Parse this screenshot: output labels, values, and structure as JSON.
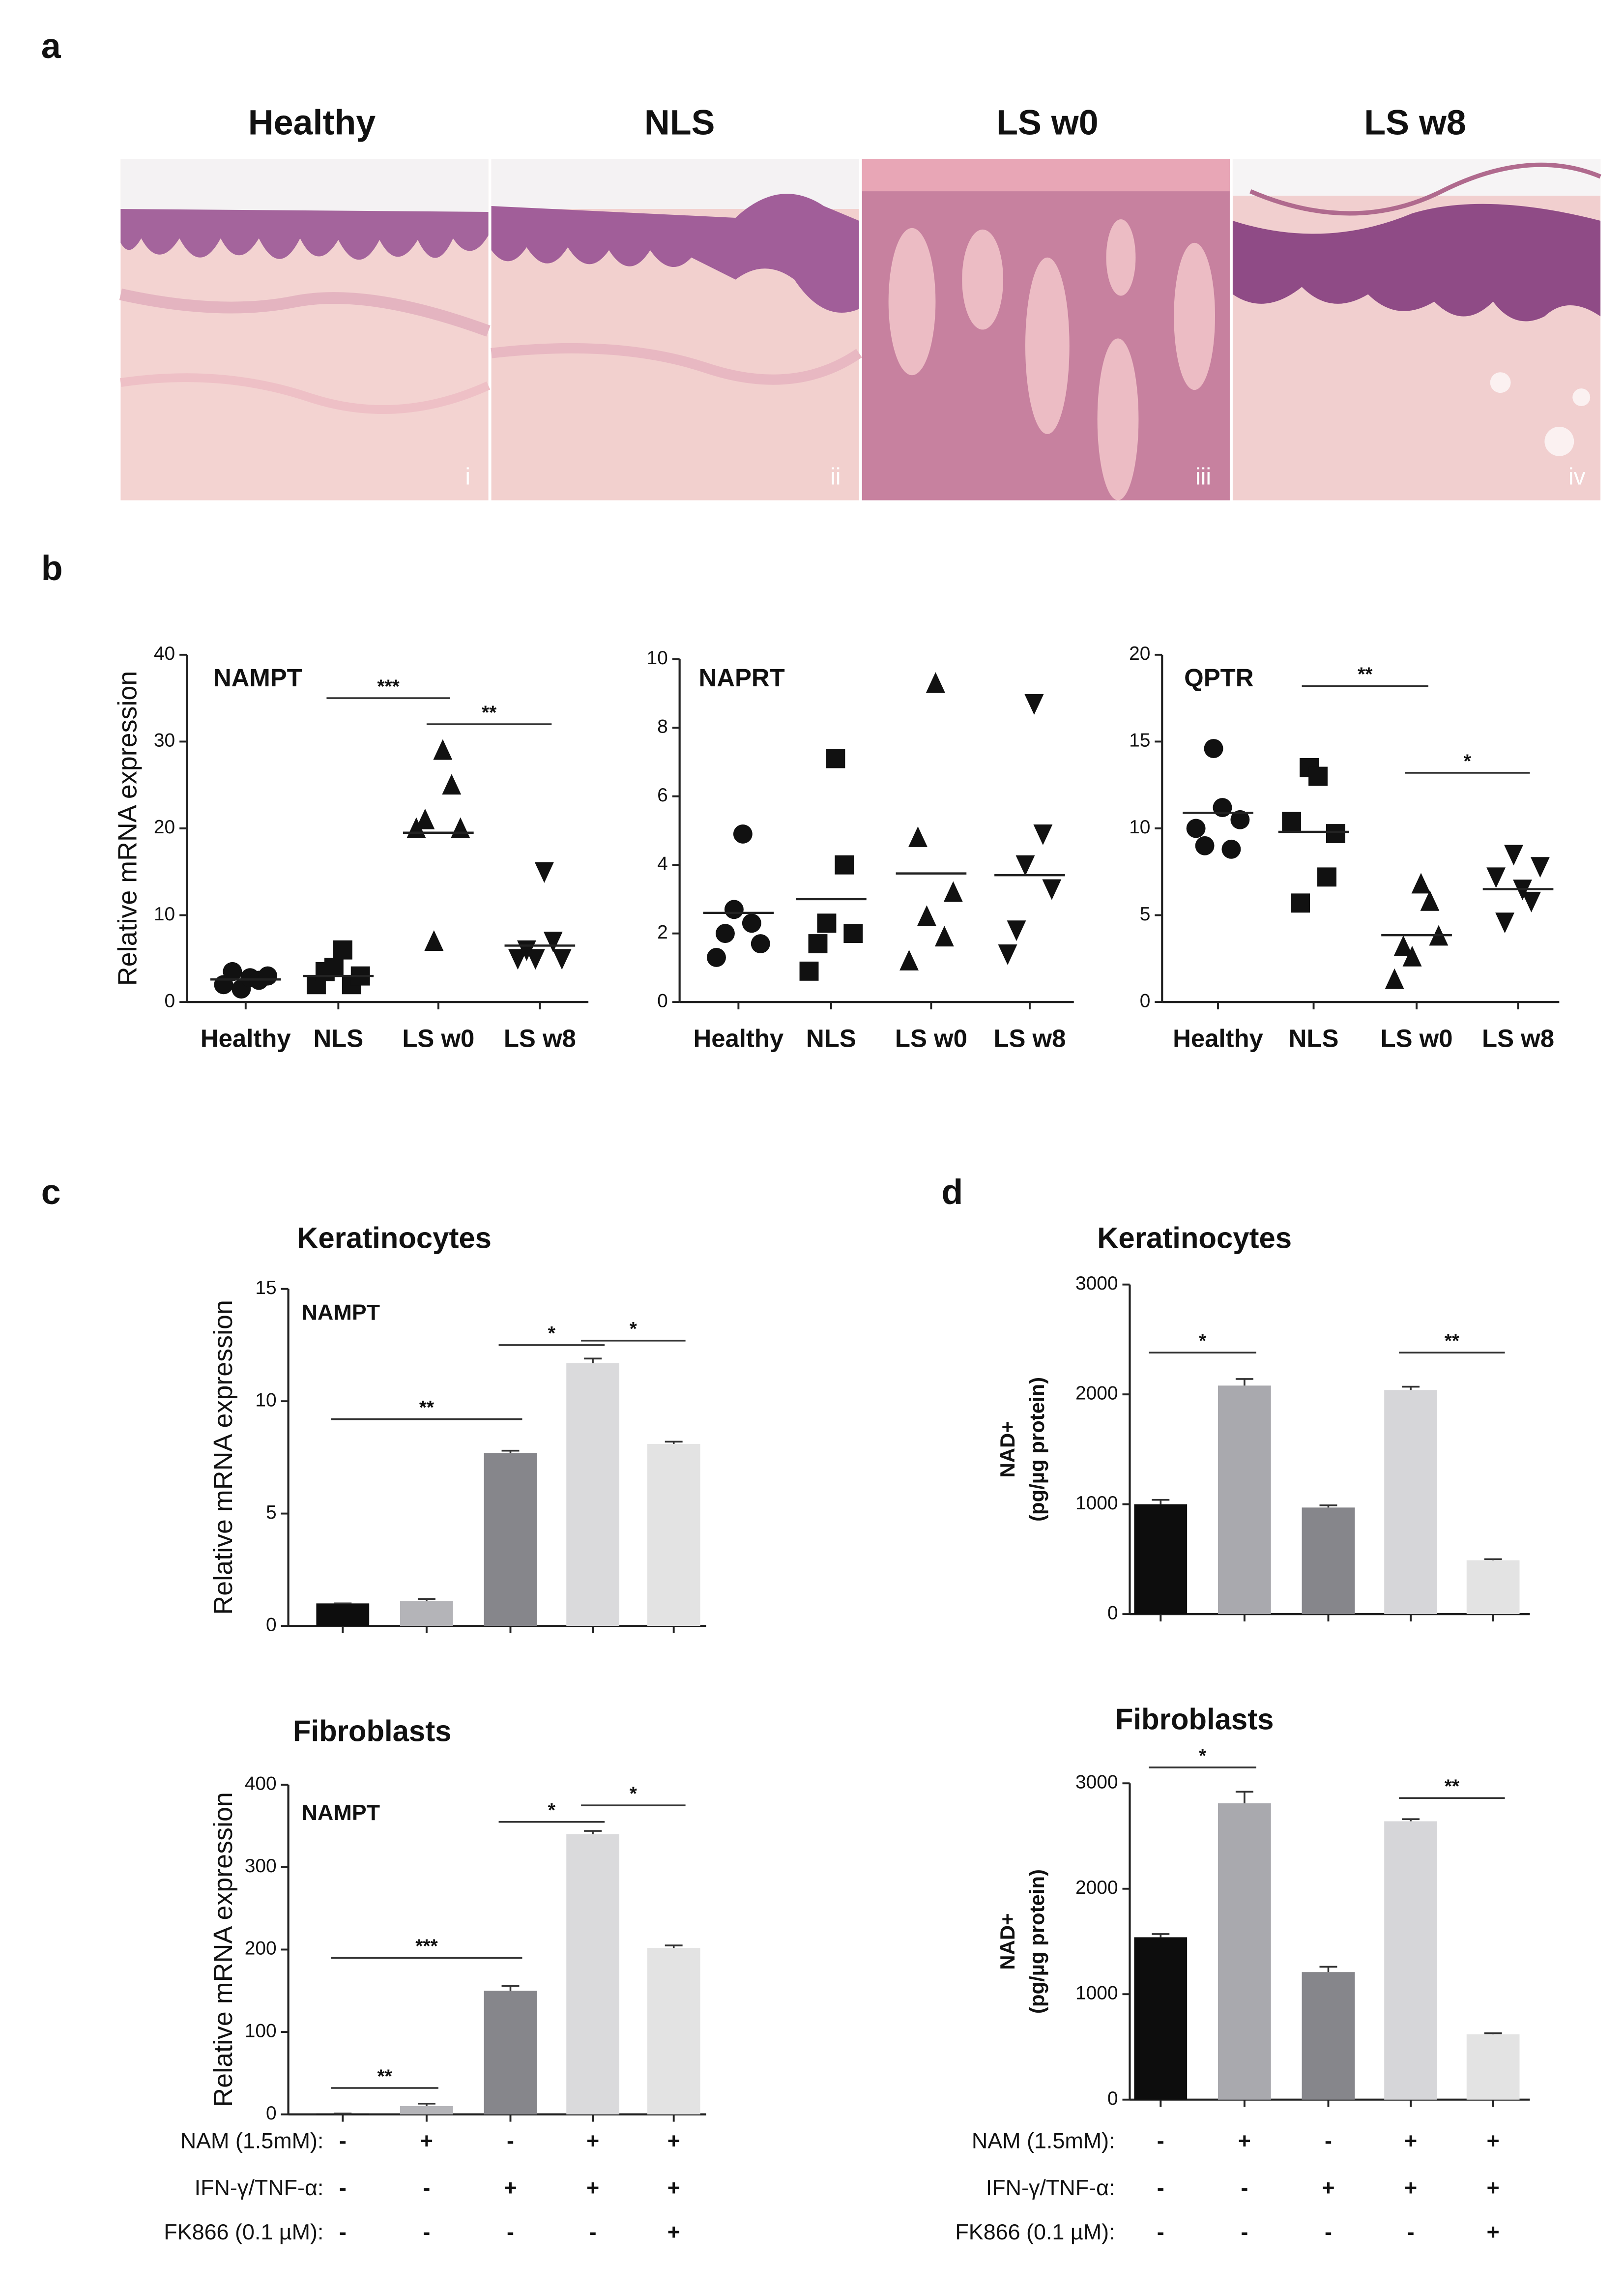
{
  "panel_labels": [
    "a",
    "b",
    "c",
    "d"
  ],
  "histology": {
    "titles": [
      "Healthy",
      "NLS",
      "LS w0",
      "LS w8"
    ],
    "numerals": [
      "i",
      "ii",
      "iii",
      "iv"
    ]
  },
  "chart_data": [
    {
      "type": "strip",
      "title": "NAMPT",
      "ylabel": "Relative mRNA expression",
      "categories": [
        "Healthy",
        "NLS",
        "LS w0",
        "LS w8"
      ],
      "markers": [
        "circle",
        "square",
        "triangle-up",
        "triangle-down"
      ],
      "color": "#111111",
      "values": [
        [
          2.0,
          3.5,
          1.5,
          2.8,
          2.5,
          3.0
        ],
        [
          2.0,
          3.5,
          4.0,
          6.0,
          2.0,
          3.0
        ],
        [
          20.0,
          21.0,
          7.0,
          29.0,
          25.0,
          20.0
        ],
        [
          5.0,
          6.0,
          5.0,
          15.0,
          7.0,
          5.0
        ]
      ],
      "means": [
        2.6,
        3.0,
        19.5,
        6.5
      ],
      "ylim": [
        0,
        40
      ],
      "yticks": [
        0,
        10,
        20,
        30,
        40
      ],
      "annotations": [
        {
          "text": "***",
          "between": [
            1,
            2
          ],
          "y": 35
        },
        {
          "text": "**",
          "between": [
            2,
            3
          ],
          "y": 32
        }
      ]
    },
    {
      "type": "strip",
      "title": "NAPRT",
      "categories": [
        "Healthy",
        "NLS",
        "LS w0",
        "LS w8"
      ],
      "markers": [
        "circle",
        "square",
        "triangle-up",
        "triangle-down"
      ],
      "color": "#111111",
      "values": [
        [
          1.3,
          2.0,
          2.7,
          4.9,
          2.3,
          1.7
        ],
        [
          0.9,
          1.7,
          2.3,
          7.1,
          4.0,
          2.0
        ],
        [
          1.2,
          4.8,
          2.5,
          9.3,
          1.9,
          3.2
        ],
        [
          1.4,
          2.1,
          4.0,
          8.7,
          4.9,
          3.3
        ]
      ],
      "means": [
        2.6,
        3.0,
        3.75,
        3.7
      ],
      "ylim": [
        0,
        10
      ],
      "yticks": [
        0,
        2,
        4,
        6,
        8,
        10
      ],
      "annotations": []
    },
    {
      "type": "strip",
      "title": "QPTR",
      "categories": [
        "Healthy",
        "NLS",
        "LS w0",
        "LS w8"
      ],
      "markers": [
        "circle",
        "square",
        "triangle-up",
        "triangle-down"
      ],
      "color": "#111111",
      "values": [
        [
          10.0,
          9.0,
          14.6,
          11.2,
          8.8,
          10.5
        ],
        [
          10.4,
          5.7,
          13.5,
          13.0,
          7.2,
          9.7
        ],
        [
          1.3,
          3.2,
          2.6,
          6.8,
          5.8,
          3.8
        ],
        [
          7.2,
          4.6,
          8.5,
          6.5,
          5.8,
          7.8
        ]
      ],
      "means": [
        10.9,
        9.8,
        3.85,
        6.5
      ],
      "ylim": [
        0,
        20
      ],
      "yticks": [
        0,
        5,
        10,
        15,
        20
      ],
      "annotations": [
        {
          "text": "**",
          "between": [
            1,
            2
          ],
          "y": 18.2
        },
        {
          "text": "*",
          "between": [
            2,
            3
          ],
          "y": 13.2
        }
      ]
    },
    {
      "type": "bar",
      "title": "Keratinocytes",
      "subtitle": "NAMPT",
      "ylabel": "Relative mRNA expression",
      "values": [
        1.0,
        1.1,
        7.7,
        11.7,
        8.1
      ],
      "errors": [
        0,
        0.1,
        0.1,
        0.2,
        0.1
      ],
      "colors": [
        "#0d0d0d",
        "#b4b4b8",
        "#86868b",
        "#dadadc",
        "#e3e3e3"
      ],
      "ylim": [
        0,
        15
      ],
      "yticks": [
        0,
        5,
        10,
        15
      ],
      "annotations": [
        {
          "text": "**",
          "between": [
            0,
            2
          ],
          "y": 9.2
        },
        {
          "text": "*",
          "between": [
            2,
            3
          ],
          "y": 12.5
        },
        {
          "text": "*",
          "between": [
            3,
            4
          ],
          "y": 12.7
        }
      ]
    },
    {
      "type": "bar",
      "title": "Fibroblasts",
      "subtitle": "NAMPT",
      "ylabel": "Relative mRNA expression",
      "values": [
        1,
        10,
        150,
        340,
        202
      ],
      "errors": [
        0,
        3,
        6,
        4,
        3
      ],
      "colors": [
        "#0d0d0d",
        "#b4b4b8",
        "#86868b",
        "#dadadc",
        "#e3e3e3"
      ],
      "ylim": [
        0,
        400
      ],
      "yticks": [
        0,
        100,
        200,
        300,
        400
      ],
      "annotations": [
        {
          "text": "**",
          "between": [
            0,
            1
          ],
          "y": 32
        },
        {
          "text": "***",
          "between": [
            0,
            2
          ],
          "y": 190
        },
        {
          "text": "*",
          "between": [
            2,
            3
          ],
          "y": 355
        },
        {
          "text": "*",
          "between": [
            3,
            4
          ],
          "y": 375
        }
      ]
    },
    {
      "type": "bar",
      "title": "Keratinocytes",
      "ylabel": [
        "NAD+",
        "(pg/µg protein)"
      ],
      "values": [
        1000,
        2080,
        970,
        2040,
        490
      ],
      "errors": [
        40,
        60,
        20,
        30,
        10
      ],
      "colors": [
        "#0d0d0d",
        "#a9a9ae",
        "#86868b",
        "#d6d6d9",
        "#e3e3e3"
      ],
      "ylim": [
        0,
        3000
      ],
      "yticks": [
        0,
        1000,
        2000,
        3000
      ],
      "annotations": [
        {
          "text": "*",
          "between": [
            0,
            1
          ],
          "y": 2380
        },
        {
          "text": "**",
          "between": [
            3,
            4
          ],
          "y": 2380
        }
      ]
    },
    {
      "type": "bar",
      "title": "Fibroblasts",
      "ylabel": [
        "NAD+",
        "(pg/µg protein)"
      ],
      "values": [
        1540,
        2810,
        1210,
        2640,
        620
      ],
      "errors": [
        30,
        110,
        50,
        20,
        10
      ],
      "colors": [
        "#0d0d0d",
        "#a9a9ae",
        "#86868b",
        "#d6d6d9",
        "#e3e3e3"
      ],
      "ylim": [
        0,
        3000
      ],
      "yticks": [
        0,
        1000,
        2000,
        3000
      ],
      "annotations": [
        {
          "text": "*",
          "between": [
            0,
            1
          ],
          "y": 3150
        },
        {
          "text": "**",
          "between": [
            3,
            4
          ],
          "y": 2860
        }
      ]
    }
  ],
  "conditions": [
    {
      "label": "NAM (1.5mM):",
      "signs": [
        "-",
        "+",
        "-",
        "+",
        "+"
      ]
    },
    {
      "label": "IFN-γ/TNF-α:",
      "signs": [
        "-",
        "-",
        "+",
        "+",
        "+"
      ]
    },
    {
      "label": "FK866 (0.1 µM):",
      "signs": [
        "-",
        "-",
        "-",
        "-",
        "+"
      ]
    }
  ]
}
